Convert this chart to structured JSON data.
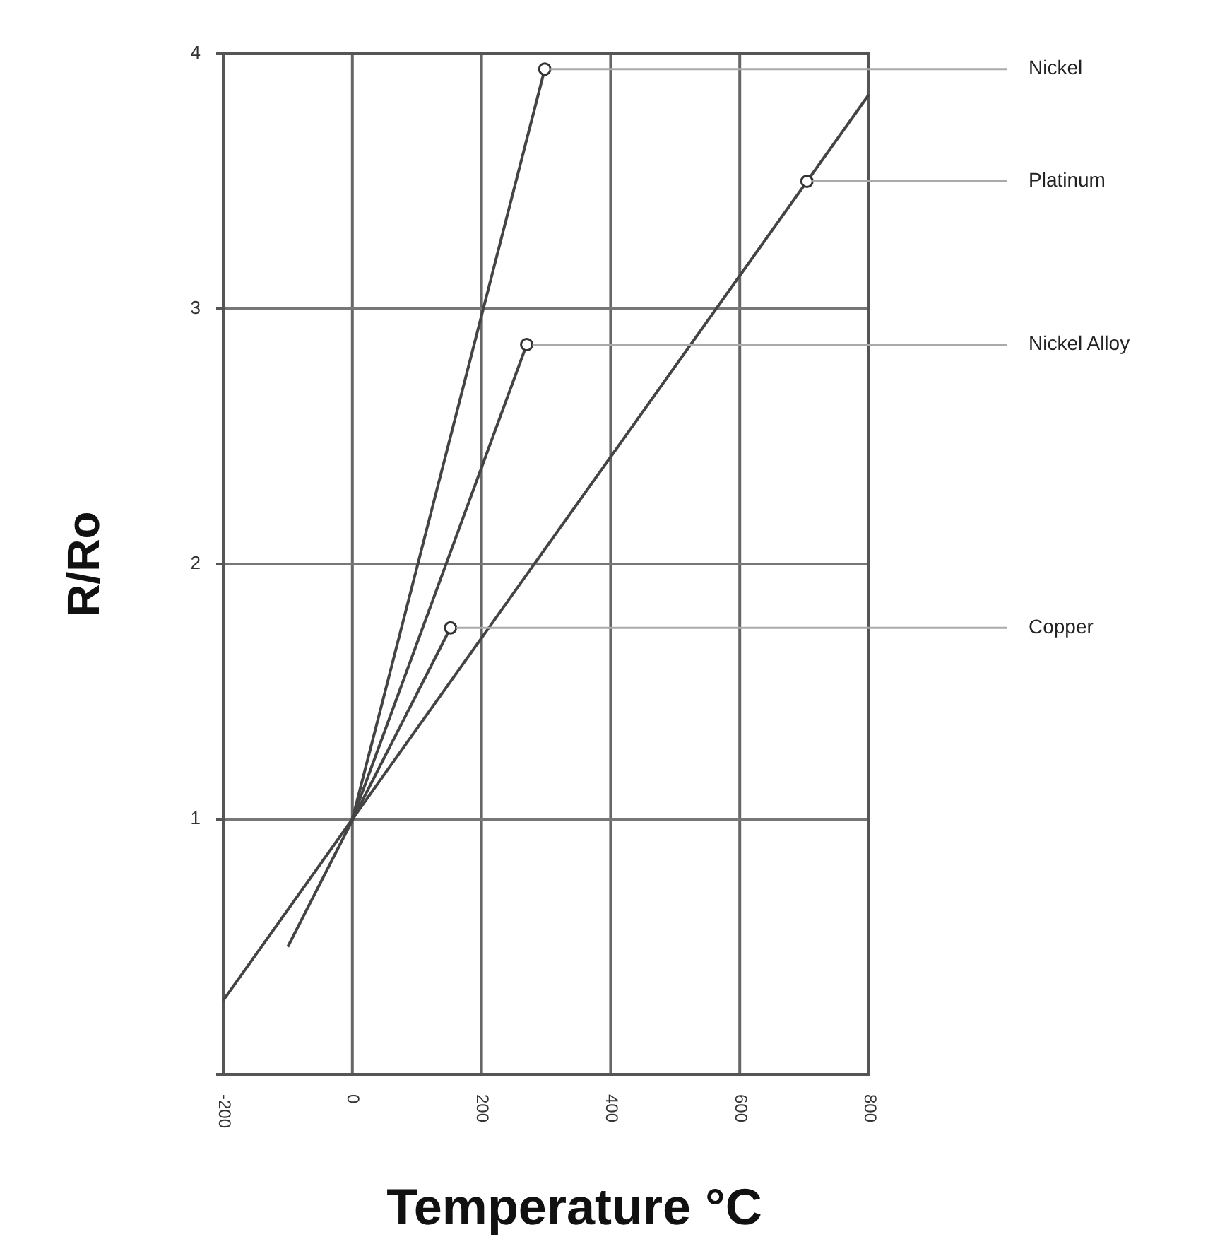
{
  "chart_data": {
    "type": "line",
    "xlabel": "Temperature °C",
    "ylabel": "R/Ro",
    "xlim": [
      -200,
      800
    ],
    "xticks": [
      -200,
      0,
      200,
      400,
      600,
      800
    ],
    "ylim": [
      0,
      4
    ],
    "yticks": [
      {
        "value": 0,
        "label": null
      },
      1,
      2,
      3,
      4
    ],
    "grid": true,
    "line_style": "solid",
    "series": [
      {
        "color": "#444444",
        "x": [
          0,
          298
        ],
        "values": [
          1,
          3.94
        ]
      },
      {
        "color": "#444444",
        "x": [
          -200,
          800
        ],
        "values": [
          0.29,
          3.84
        ]
      },
      {
        "color": "#444444",
        "x": [
          0,
          270
        ],
        "values": [
          1,
          2.86
        ]
      },
      {
        "color": "#444444",
        "x": [
          -100,
          152
        ],
        "values": [
          0.5,
          1.75
        ]
      }
    ],
    "annotations": [
      {
        "text": "Nickel",
        "x": 298,
        "y": 3.94
      },
      {
        "text": "Platinum",
        "x": 704,
        "y": 3.5
      },
      {
        "text": "Nickel Alloy",
        "x": 270,
        "y": 2.86
      },
      {
        "text": "Copper",
        "x": 152,
        "y": 1.75
      }
    ]
  }
}
